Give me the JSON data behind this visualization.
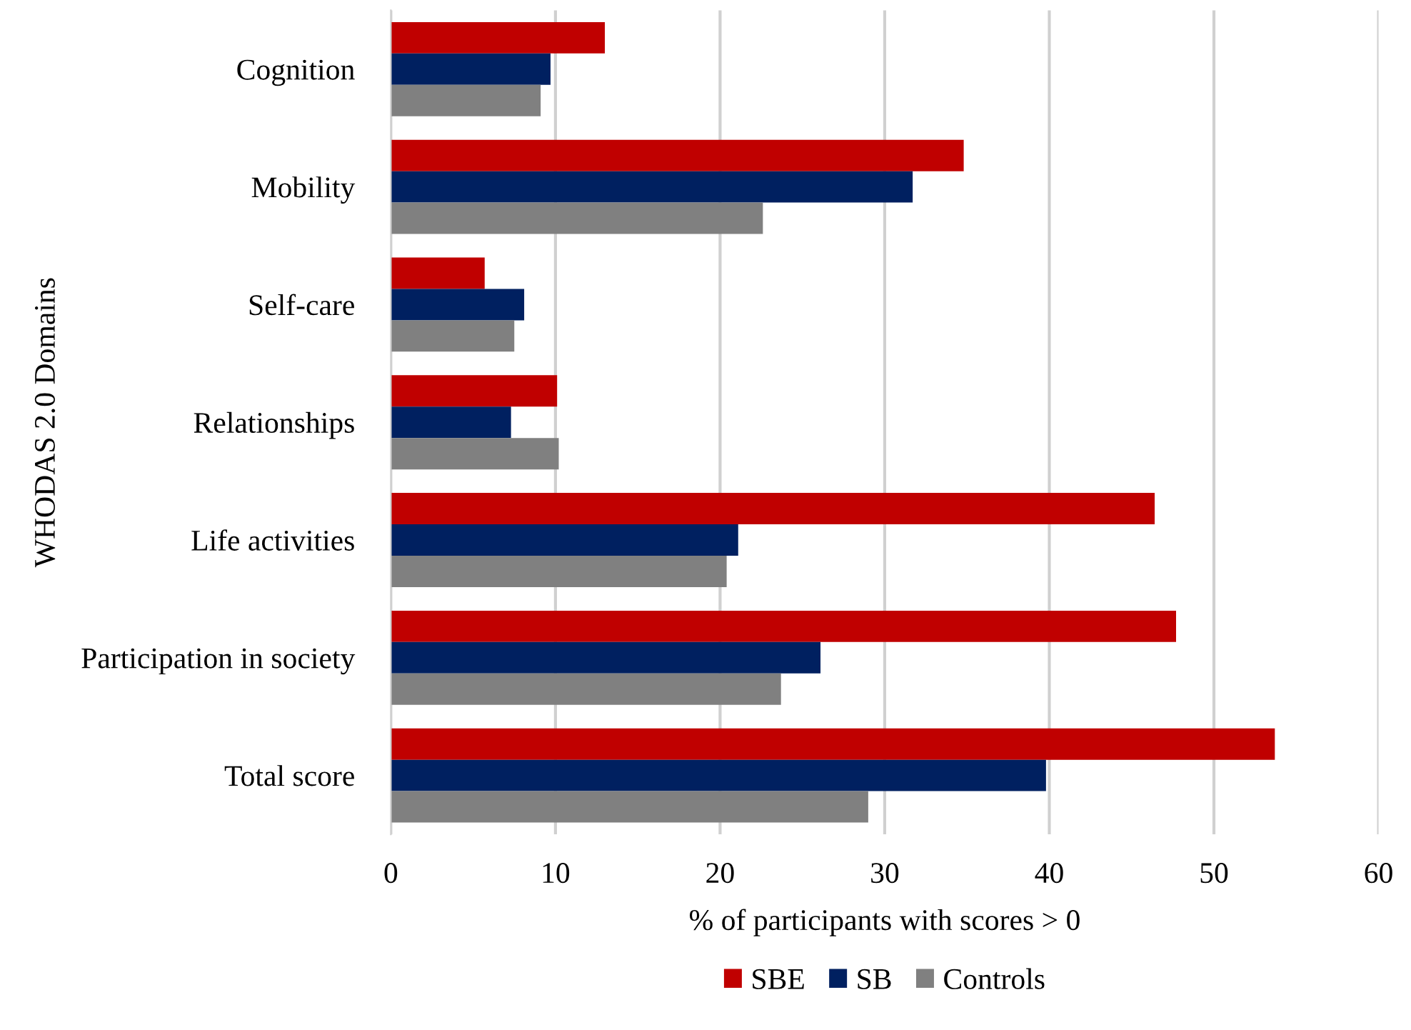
{
  "chart_data": {
    "type": "bar",
    "orientation": "horizontal",
    "categories": [
      "Cognition",
      "Mobility",
      "Self-care",
      "Relationships",
      "Life activities",
      "Participation in society",
      "Total score"
    ],
    "series": [
      {
        "name": "SBE",
        "color": "#c00000",
        "values": [
          13.0,
          34.8,
          5.7,
          10.1,
          46.4,
          47.7,
          53.7
        ]
      },
      {
        "name": "SB",
        "color": "#002060",
        "values": [
          9.7,
          31.7,
          8.1,
          7.3,
          21.1,
          26.1,
          39.8
        ]
      },
      {
        "name": "Controls",
        "color": "#808080",
        "values": [
          9.1,
          22.6,
          7.5,
          10.2,
          20.4,
          23.7,
          29.0
        ]
      }
    ],
    "xlabel": "% of participants with scores > 0",
    "ylabel": "WHODAS 2.0 Domains",
    "xlim": [
      0,
      60
    ],
    "xticks": [
      0,
      10,
      20,
      30,
      40,
      50,
      60
    ],
    "grid": "x",
    "legend": "bottom"
  }
}
